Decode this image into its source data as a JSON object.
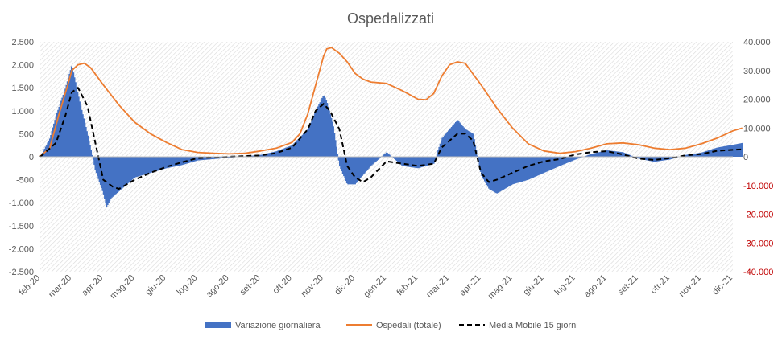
{
  "chart_data": {
    "type": "bar",
    "title": "Ospedalizzati",
    "x_labels": [
      "feb-20",
      "mar-20",
      "apr-20",
      "mag-20",
      "giu-20",
      "lug-20",
      "ago-20",
      "set-20",
      "ott-20",
      "nov-20",
      "dic-20",
      "gen-21",
      "feb-21",
      "mar-21",
      "apr-21",
      "mag-21",
      "giu-21",
      "lug-21",
      "ago-21",
      "set-21",
      "ott-21",
      "nov-21",
      "dic-21"
    ],
    "y_left": {
      "ylim": [
        -2500,
        2500
      ],
      "ticks": [
        "-2.500",
        "-2.000",
        "-1.500",
        "-1.000",
        "-500",
        "0",
        "500",
        "1.000",
        "1.500",
        "2.000",
        "2.500"
      ]
    },
    "y_right": {
      "ylim": [
        -40000,
        40000
      ],
      "ticks": [
        "-40.000",
        "-30.000",
        "-20.000",
        "-10.000",
        "0",
        "10.000",
        "20.000",
        "30.000",
        "40.000"
      ]
    },
    "series": [
      {
        "name": "Variazione giornaliera",
        "type": "bar",
        "axis": "left",
        "color": "#4472c4",
        "month_index": [
          0.0,
          0.3,
          0.5,
          0.8,
          1.0,
          1.25,
          1.5,
          1.75,
          2.0,
          2.1,
          2.25,
          2.5,
          2.75,
          3.0,
          3.5,
          4.0,
          4.5,
          5.0,
          6.0,
          7.0,
          7.5,
          8.0,
          8.5,
          8.75,
          9.0,
          9.1,
          9.3,
          9.5,
          9.75,
          10.0,
          10.5,
          11.0,
          11.5,
          12.0,
          12.5,
          12.75,
          13.0,
          13.25,
          13.5,
          13.75,
          14.0,
          14.25,
          14.5,
          15.0,
          15.5,
          16.0,
          16.5,
          17.0,
          17.5,
          18.0,
          18.5,
          19.0,
          19.5,
          20.0,
          20.5,
          21.0,
          21.5,
          22.0,
          22.3
        ],
        "values": [
          0,
          400,
          900,
          1500,
          2000,
          1200,
          500,
          -300,
          -800,
          -1100,
          -900,
          -750,
          -600,
          -450,
          -350,
          -250,
          -180,
          -80,
          -20,
          40,
          120,
          250,
          600,
          1000,
          1350,
          1200,
          700,
          -200,
          -600,
          -600,
          -200,
          100,
          -200,
          -250,
          -150,
          400,
          600,
          800,
          600,
          500,
          -400,
          -700,
          -800,
          -600,
          -500,
          -350,
          -200,
          -60,
          60,
          140,
          100,
          -40,
          -110,
          -60,
          40,
          90,
          200,
          260,
          300
        ]
      },
      {
        "name": "Ospedali (totale)",
        "type": "line",
        "axis": "right",
        "color": "#ed7d31",
        "month_index": [
          0.0,
          0.3,
          0.6,
          0.9,
          1.0,
          1.2,
          1.4,
          1.6,
          2.0,
          2.5,
          3.0,
          3.5,
          4.0,
          4.5,
          5.0,
          5.5,
          6.0,
          6.5,
          7.0,
          7.5,
          8.0,
          8.25,
          8.5,
          8.75,
          9.0,
          9.1,
          9.25,
          9.5,
          9.75,
          10.0,
          10.25,
          10.5,
          11.0,
          11.5,
          12.0,
          12.25,
          12.5,
          12.75,
          13.0,
          13.25,
          13.5,
          14.0,
          14.5,
          15.0,
          15.5,
          16.0,
          16.5,
          17.0,
          17.5,
          18.0,
          18.5,
          19.0,
          19.5,
          20.0,
          20.5,
          21.0,
          21.5,
          22.0,
          22.3
        ],
        "values": [
          200,
          3000,
          15000,
          26000,
          30000,
          32000,
          32500,
          31000,
          25000,
          18000,
          12000,
          8000,
          5000,
          2500,
          1500,
          1200,
          1000,
          1200,
          2000,
          3000,
          5000,
          8000,
          15000,
          25000,
          35000,
          37500,
          38000,
          36000,
          33000,
          29000,
          27000,
          26000,
          25500,
          23000,
          20000,
          19800,
          22000,
          28000,
          32000,
          33000,
          32500,
          25000,
          17000,
          10000,
          4500,
          2000,
          1200,
          1800,
          3000,
          4500,
          4800,
          4200,
          3000,
          2500,
          3000,
          4500,
          6500,
          9000,
          10000
        ]
      },
      {
        "name": "Media Mobile 15 giorni",
        "type": "line",
        "axis": "left",
        "color": "#000000",
        "dashed": true,
        "month_index": [
          0.0,
          0.5,
          0.8,
          1.0,
          1.2,
          1.5,
          1.75,
          2.0,
          2.3,
          2.5,
          3.0,
          3.5,
          4.0,
          4.5,
          5.0,
          6.0,
          7.0,
          7.5,
          8.0,
          8.5,
          8.75,
          9.0,
          9.2,
          9.5,
          9.75,
          10.0,
          10.25,
          10.5,
          11.0,
          11.5,
          12.0,
          12.5,
          12.75,
          13.0,
          13.25,
          13.5,
          13.75,
          14.0,
          14.25,
          14.5,
          15.0,
          15.5,
          16.0,
          16.5,
          17.0,
          17.5,
          18.0,
          18.5,
          19.0,
          19.5,
          20.0,
          20.5,
          21.0,
          21.5,
          22.0,
          22.3
        ],
        "values": [
          0,
          300,
          900,
          1400,
          1500,
          1100,
          300,
          -500,
          -650,
          -700,
          -500,
          -350,
          -220,
          -120,
          -30,
          0,
          30,
          80,
          200,
          600,
          1000,
          1150,
          1000,
          600,
          -200,
          -450,
          -550,
          -450,
          -100,
          -150,
          -200,
          -150,
          200,
          350,
          500,
          500,
          350,
          -350,
          -550,
          -500,
          -350,
          -200,
          -100,
          -50,
          50,
          100,
          120,
          50,
          -40,
          -70,
          -30,
          30,
          60,
          130,
          150,
          160
        ]
      }
    ],
    "legend_position": "bottom",
    "grid": false,
    "background_pattern": "diagonal hatch"
  }
}
